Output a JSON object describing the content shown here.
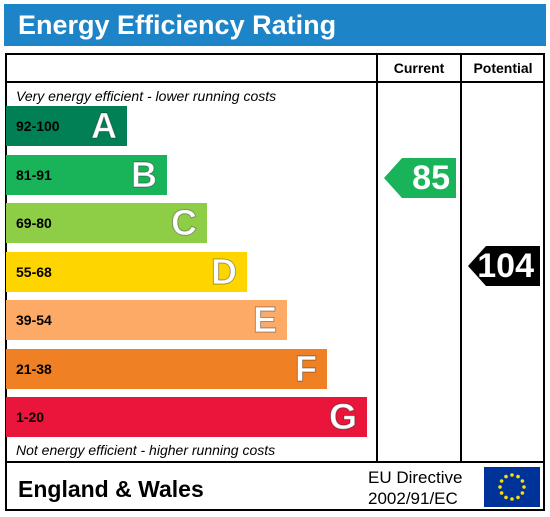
{
  "header": {
    "title": "Energy Efficiency Rating"
  },
  "columns": {
    "current": "Current",
    "potential": "Potential"
  },
  "notes": {
    "top": "Very energy efficient - lower running costs",
    "bottom": "Not energy efficient - higher running costs"
  },
  "bands": [
    {
      "range": "92-100",
      "letter": "A",
      "color": "#008054"
    },
    {
      "range": "81-91",
      "letter": "B",
      "color": "#19b459"
    },
    {
      "range": "69-80",
      "letter": "C",
      "color": "#8dce46"
    },
    {
      "range": "55-68",
      "letter": "D",
      "color": "#ffd500"
    },
    {
      "range": "39-54",
      "letter": "E",
      "color": "#fcaa65"
    },
    {
      "range": "21-38",
      "letter": "F",
      "color": "#ef8023"
    },
    {
      "range": "1-20",
      "letter": "G",
      "color": "#e9153b"
    }
  ],
  "ratings": {
    "current": {
      "value": "85",
      "color": "#19b459"
    },
    "potential": {
      "value": "104",
      "color": "#000000"
    }
  },
  "footer": {
    "region": "England & Wales",
    "directive_line1": "EU Directive",
    "directive_line2": "2002/91/EC"
  },
  "colors": {
    "header": "#1d84c7",
    "eu_flag": "#003399",
    "eu_stars": "#ffdd00"
  }
}
